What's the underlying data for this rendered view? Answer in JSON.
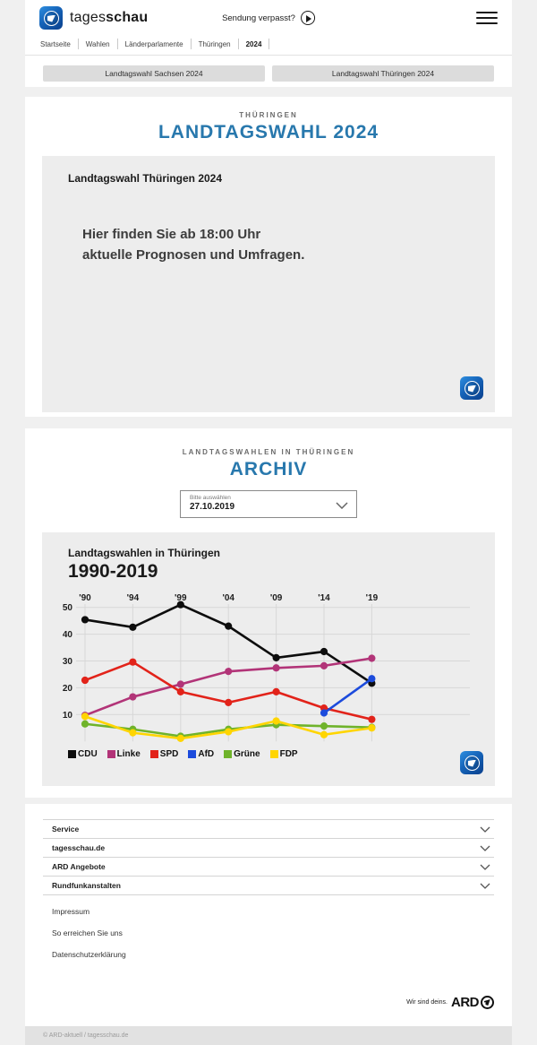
{
  "header": {
    "brand_regular": "tages",
    "brand_bold": "schau",
    "sendung_verpasst": "Sendung verpasst?",
    "breadcrumb": [
      "Startseite",
      "Wahlen",
      "Länderparlamente",
      "Thüringen",
      "2024"
    ]
  },
  "quick_links": [
    "Landtagswahl Sachsen 2024",
    "Landtagswahl Thüringen 2024"
  ],
  "election_section": {
    "kicker": "THÜRINGEN",
    "title": "LANDTAGSWAHL 2024",
    "card": {
      "heading": "Landtagswahl Thüringen 2024",
      "line1": "Hier finden Sie ab 18:00 Uhr",
      "line2": "aktuelle Prognosen und Umfragen."
    }
  },
  "archive_section": {
    "kicker": "LANDTAGSWAHLEN IN THÜRINGEN",
    "title": "ARCHIV",
    "select": {
      "label": "Bitte auswählen",
      "value": "27.10.2019"
    }
  },
  "chart_data": {
    "type": "line",
    "title": "Landtagswahlen in Thüringen",
    "subtitle": "1990-2019",
    "categories": [
      "'90",
      "'94",
      "'99",
      "'04",
      "'09",
      "'14",
      "'19"
    ],
    "y_ticks": [
      50,
      40,
      30,
      20,
      10
    ],
    "ylim": [
      0,
      55
    ],
    "grid": true,
    "legend_position": "bottom",
    "series": [
      {
        "name": "CDU",
        "color": "#0d0d0d",
        "values": [
          45.4,
          42.6,
          51.0,
          43.0,
          31.2,
          33.5,
          21.7
        ]
      },
      {
        "name": "Linke",
        "color": "#b23478",
        "values": [
          9.7,
          16.6,
          21.3,
          26.1,
          27.4,
          28.2,
          31.0
        ]
      },
      {
        "name": "SPD",
        "color": "#e2231a",
        "values": [
          22.8,
          29.6,
          18.5,
          14.5,
          18.5,
          12.4,
          8.2
        ]
      },
      {
        "name": "AfD",
        "color": "#1c4bdc",
        "values": [
          null,
          null,
          null,
          null,
          null,
          10.6,
          23.4
        ]
      },
      {
        "name": "Grüne",
        "color": "#6fb32b",
        "values": [
          6.5,
          4.5,
          1.9,
          4.5,
          6.2,
          5.7,
          5.2
        ]
      },
      {
        "name": "FDP",
        "color": "#ffd500",
        "values": [
          9.3,
          3.2,
          1.1,
          3.6,
          7.6,
          2.5,
          5.0
        ]
      }
    ]
  },
  "footer": {
    "accordions": [
      "Service",
      "tagesschau.de",
      "ARD Angebote",
      "Rundfunkanstalten"
    ],
    "links": [
      "Impressum",
      "So erreichen Sie uns",
      "Datenschutzerklärung"
    ],
    "ard_claim": "Wir sind deins.",
    "ard_brand": "ARD",
    "copyright": "© ARD-aktuell / tagesschau.de"
  },
  "colors": {
    "accent_blue": "#2878ad",
    "card_gray": "#ededed",
    "button_gray": "#dcdcdc"
  }
}
